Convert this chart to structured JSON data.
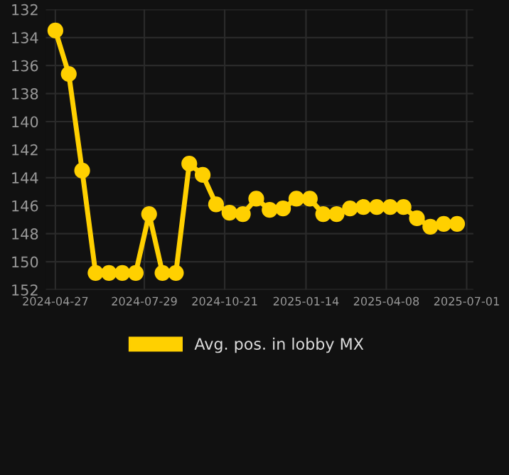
{
  "chart_data": {
    "type": "line",
    "x": [
      "2024-04-27",
      "2024-05-11",
      "2024-05-25",
      "2024-06-08",
      "2024-06-22",
      "2024-07-06",
      "2024-07-20",
      "2024-08-03",
      "2024-08-17",
      "2024-08-31",
      "2024-09-14",
      "2024-09-28",
      "2024-10-12",
      "2024-10-26",
      "2024-11-09",
      "2024-11-23",
      "2024-12-07",
      "2024-12-21",
      "2025-01-04",
      "2025-01-18",
      "2025-02-01",
      "2025-02-15",
      "2025-03-01",
      "2025-03-15",
      "2025-03-29",
      "2025-04-12",
      "2025-04-26",
      "2025-05-10",
      "2025-05-24",
      "2025-06-07",
      "2025-06-21"
    ],
    "series": [
      {
        "name": "Avg. pos. in lobby MX",
        "color": "#ffd000",
        "values": [
          133.5,
          136.6,
          143.5,
          150.8,
          150.8,
          150.8,
          150.8,
          146.6,
          150.8,
          150.8,
          143.0,
          143.8,
          145.9,
          146.5,
          146.6,
          145.5,
          146.3,
          146.2,
          145.5,
          145.5,
          146.6,
          146.6,
          146.2,
          146.1,
          146.1,
          146.1,
          146.1,
          146.9,
          147.5,
          147.3,
          147.3
        ]
      }
    ],
    "ylim": [
      152,
      132
    ],
    "yticks": [
      132,
      134,
      136,
      138,
      140,
      142,
      144,
      146,
      148,
      150,
      152
    ],
    "xlim": [
      "2024-04-17",
      "2025-07-08"
    ],
    "xticks": [
      "2024-04-27",
      "2024-07-29",
      "2024-10-21",
      "2025-01-14",
      "2025-04-08",
      "2025-07-01"
    ],
    "grid": true,
    "legend": "bottom",
    "marker": "circle",
    "line_style": "solid"
  }
}
